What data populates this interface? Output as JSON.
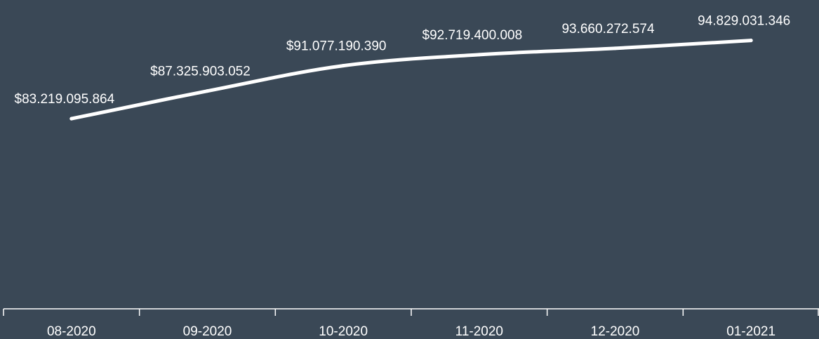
{
  "colors": {
    "background": "#3a4856",
    "line": "#ffffff",
    "axis": "#ffffff",
    "text": "#ffffff"
  },
  "chart_data": {
    "type": "line",
    "title": "",
    "xlabel": "",
    "ylabel": "",
    "categories": [
      "08-2020",
      "09-2020",
      "10-2020",
      "11-2020",
      "12-2020",
      "01-2021"
    ],
    "series": [
      {
        "values": [
          83219095864,
          87325903052,
          91077190390,
          92719400008,
          93660272574,
          94829031346
        ],
        "labels": [
          "$83.219.095.864",
          "$87.325.903.052",
          "$91.077.190.390",
          "$92.719.400.008",
          "93.660.272.574",
          "94.829.031.346"
        ]
      }
    ],
    "ylim": [
      55000000000,
      100000000000
    ],
    "grid": false,
    "legend": "none",
    "smooth": true
  }
}
